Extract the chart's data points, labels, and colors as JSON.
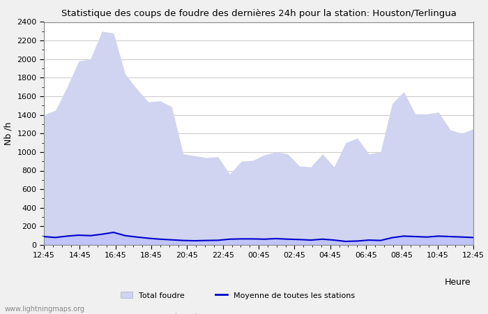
{
  "title": "Statistique des coups de foudre des dernières 24h pour la station: Houston/Terlingua",
  "ylabel": "Nb /h",
  "xlabel_right": "Heure",
  "ylim": [
    0,
    2400
  ],
  "yticks": [
    0,
    200,
    400,
    600,
    800,
    1000,
    1200,
    1400,
    1600,
    1800,
    2000,
    2200,
    2400
  ],
  "xtick_labels": [
    "12:45",
    "14:45",
    "16:45",
    "18:45",
    "20:45",
    "22:45",
    "00:45",
    "02:45",
    "04:45",
    "06:45",
    "08:45",
    "10:45",
    "12:45"
  ],
  "bg_color": "#f0f0f0",
  "plot_bg_color": "#ffffff",
  "grid_color": "#cccccc",
  "fill_color_total": "#d0d4f0",
  "fill_color_station": "#c0c4f8",
  "line_color": "#0000cc",
  "watermark": "www.lightningmaps.org",
  "legend": {
    "total_foudre": "Total foudre",
    "moyenne": "Moyenne de toutes les stations",
    "foudre_station": "Foudre détectée par Houston/Terlingua"
  },
  "total_foudre": [
    1400,
    1450,
    1700,
    1980,
    2000,
    2300,
    2280,
    1840,
    1680,
    1540,
    1550,
    1490,
    980,
    960,
    940,
    950,
    760,
    900,
    910,
    970,
    1000,
    980,
    850,
    840,
    980,
    840,
    1100,
    1150,
    980,
    1000,
    1520,
    1650,
    1410,
    1410,
    1430,
    1240,
    1200,
    1250
  ],
  "foudre_station": [
    90,
    95,
    100,
    115,
    110,
    120,
    140,
    110,
    90,
    75,
    65,
    60,
    50,
    48,
    50,
    52,
    65,
    70,
    68,
    65,
    70,
    65,
    60,
    55,
    65,
    55,
    40,
    45,
    55,
    50,
    80,
    100,
    95,
    90,
    100,
    95,
    90,
    85
  ],
  "moyenne_stations": [
    90,
    80,
    95,
    105,
    100,
    115,
    135,
    100,
    85,
    72,
    62,
    55,
    48,
    45,
    48,
    50,
    62,
    65,
    65,
    62,
    68,
    62,
    58,
    52,
    62,
    52,
    38,
    42,
    52,
    48,
    78,
    95,
    90,
    85,
    95,
    90,
    85,
    80
  ]
}
